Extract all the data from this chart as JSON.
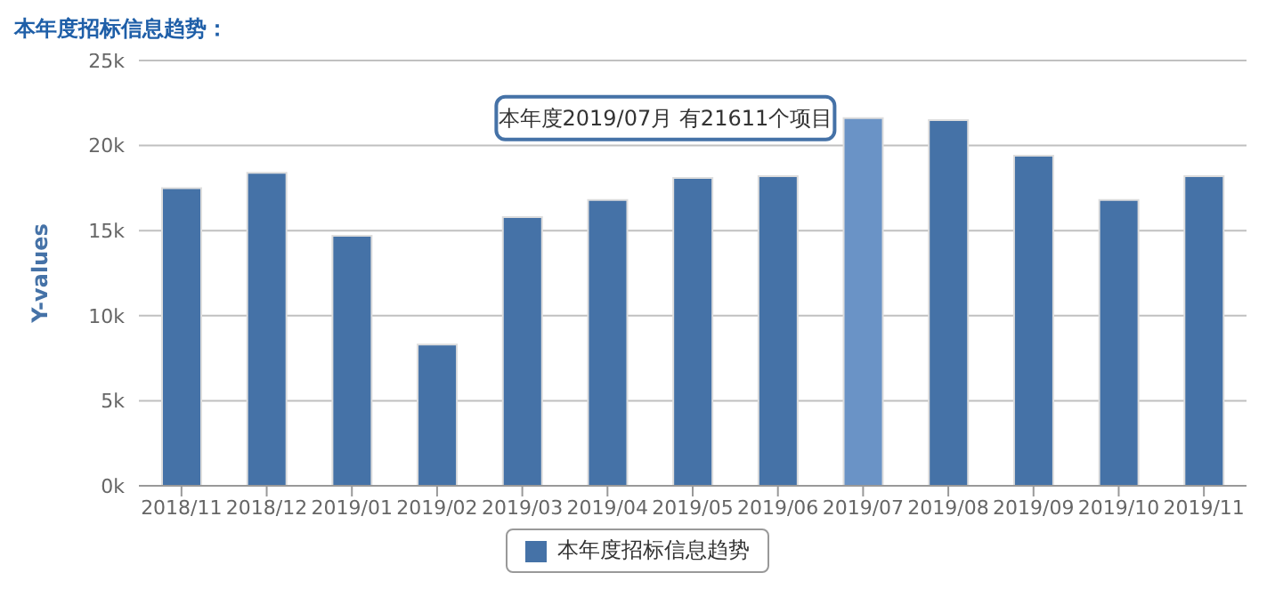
{
  "chart_data": {
    "type": "bar",
    "title": "本年度招标信息趋势：",
    "ylabel": "Y-values",
    "categories": [
      "2018/11",
      "2018/12",
      "2019/01",
      "2019/02",
      "2019/03",
      "2019/04",
      "2019/05",
      "2019/06",
      "2019/07",
      "2019/08",
      "2019/09",
      "2019/10",
      "2019/11"
    ],
    "series": [
      {
        "name": "本年度招标信息趋势",
        "color": "#4572a7",
        "colors": [
          "#4572a7",
          "#4572a7",
          "#4572a7",
          "#4572a7",
          "#4572a7",
          "#4572a7",
          "#4572a7",
          "#4572a7",
          "#6a93c6",
          "#4572a7",
          "#4572a7",
          "#4572a7",
          "#4572a7"
        ],
        "values": [
          17500,
          18400,
          14700,
          8300,
          15800,
          16800,
          18100,
          18200,
          21611,
          21500,
          19400,
          16800,
          18200
        ]
      }
    ],
    "ylim": [
      0,
      25000
    ],
    "yticks": [
      {
        "value": 0,
        "label": "0k"
      },
      {
        "value": 5000,
        "label": "5k"
      },
      {
        "value": 10000,
        "label": "10k"
      },
      {
        "value": 15000,
        "label": "15k"
      },
      {
        "value": 20000,
        "label": "20k"
      },
      {
        "value": 25000,
        "label": "25k"
      }
    ],
    "grid": "y",
    "legend": "bottom",
    "annotations": [
      {
        "text": "本年度2019/07月 有21611个项目",
        "x": "2019/07",
        "y": 21611
      }
    ]
  }
}
